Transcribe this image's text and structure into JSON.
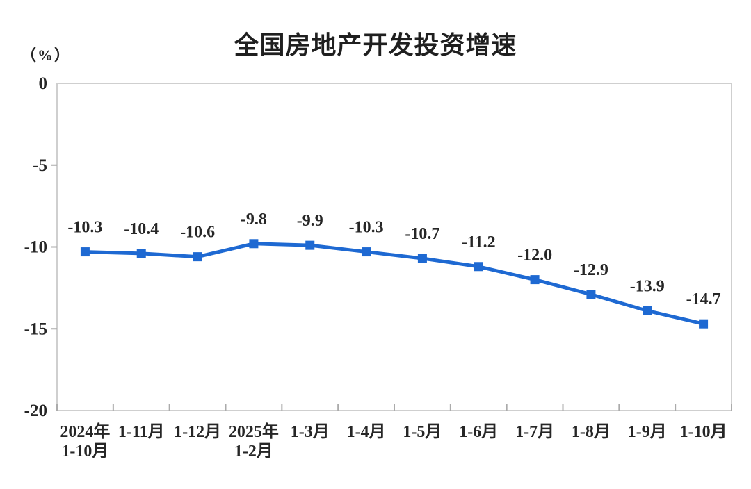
{
  "page": {
    "background": "#ffffff"
  },
  "chart_data": {
    "type": "line",
    "title": "全国房地产开发投资增速",
    "unit_label": "（%）",
    "categories": [
      "2024年\n1-10月",
      "1-11月",
      "1-12月",
      "2025年\n1-2月",
      "1-3月",
      "1-4月",
      "1-5月",
      "1-6月",
      "1-7月",
      "1-8月",
      "1-9月",
      "1-10月"
    ],
    "values": [
      -10.3,
      -10.4,
      -10.6,
      -9.8,
      -9.9,
      -10.3,
      -10.7,
      -11.2,
      -12.0,
      -12.9,
      -13.9,
      -14.7
    ],
    "data_labels": [
      "-10.3",
      "-10.4",
      "-10.6",
      "-9.8",
      "-9.9",
      "-10.3",
      "-10.7",
      "-11.2",
      "-12.0",
      "-12.9",
      "-13.9",
      "-14.7"
    ],
    "xlabel": "",
    "ylabel": "（%）",
    "ylim": [
      -20,
      0
    ],
    "y_ticks": [
      0,
      -5,
      -10,
      -15,
      -20
    ],
    "grid": false,
    "legend": "none",
    "marker": "square",
    "colors": {
      "line": "#1E69D2",
      "marker": "#1E69D2",
      "axis_border": "#CFCFCF",
      "tick": "#ABABAB",
      "text": "#262626",
      "title_text": "#1F1F1F"
    }
  }
}
